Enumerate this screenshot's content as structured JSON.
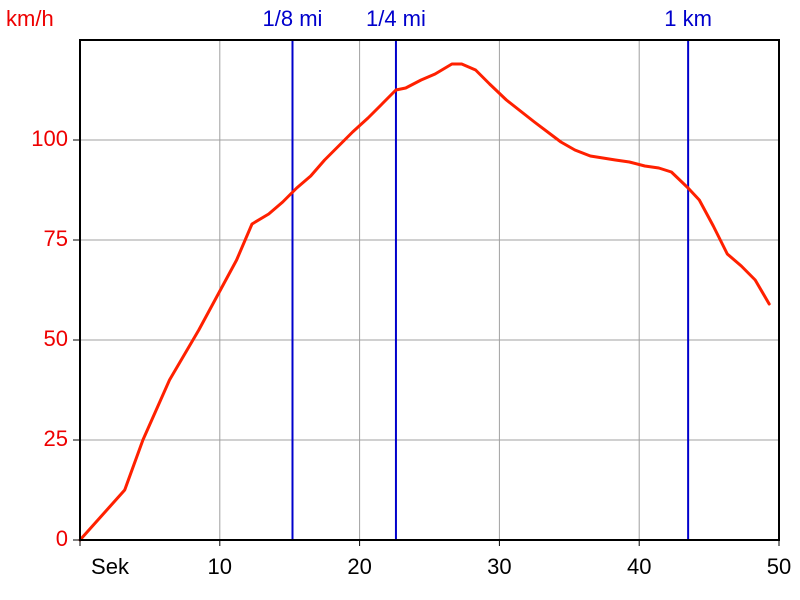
{
  "chart_data": {
    "type": "line",
    "title": "",
    "ylabel": "km/h",
    "xlabel": "Sek",
    "xlim": [
      0,
      50
    ],
    "ylim": [
      0,
      125
    ],
    "grid": true,
    "x_ticks": [
      {
        "value": 0,
        "label": "Sek"
      },
      {
        "value": 10,
        "label": "10"
      },
      {
        "value": 20,
        "label": "20"
      },
      {
        "value": 30,
        "label": "30"
      },
      {
        "value": 40,
        "label": "40"
      },
      {
        "value": 50,
        "label": "50"
      }
    ],
    "y_ticks": [
      {
        "value": 0,
        "label": "0"
      },
      {
        "value": 25,
        "label": "25"
      },
      {
        "value": 50,
        "label": "50"
      },
      {
        "value": 75,
        "label": "75"
      },
      {
        "value": 100,
        "label": "100"
      }
    ],
    "markers": [
      {
        "x": 15.2,
        "label": "1/8 mi"
      },
      {
        "x": 22.6,
        "label": "1/4 mi"
      },
      {
        "x": 43.5,
        "label": "1 km"
      }
    ],
    "series": [
      {
        "x": [
          0,
          3.2,
          4.5,
          6.4,
          8.5,
          11.2,
          12.3,
          13.5,
          14.5,
          15.5,
          16.5,
          17.5,
          18.5,
          19.5,
          20.6,
          21.6,
          22.6,
          23.3,
          24.4,
          25.4,
          26.6,
          27.3,
          28.3,
          29.3,
          30.5,
          32.5,
          34.4,
          35.4,
          36.5,
          37.4,
          38.3,
          39.3,
          40.4,
          41.4,
          42.3,
          43.5,
          44.3,
          45.3,
          46.3,
          47.3,
          48.3,
          49.3
        ],
        "y": [
          0,
          12.5,
          25,
          40,
          52.5,
          70,
          79,
          81.5,
          84.5,
          88,
          91,
          95,
          98.5,
          102,
          105.5,
          109,
          112.5,
          113,
          115,
          116.5,
          119,
          119,
          117.5,
          114,
          110,
          104.5,
          99.5,
          97.5,
          96,
          95.5,
          95,
          94.5,
          93.5,
          93,
          92,
          88,
          85,
          78.5,
          71.5,
          68.5,
          65,
          59
        ]
      }
    ]
  },
  "colors": {
    "series": "#ff2000",
    "axis_text": "#ee0000",
    "marker": "#0000cc",
    "grid": "#a0a0a0"
  }
}
